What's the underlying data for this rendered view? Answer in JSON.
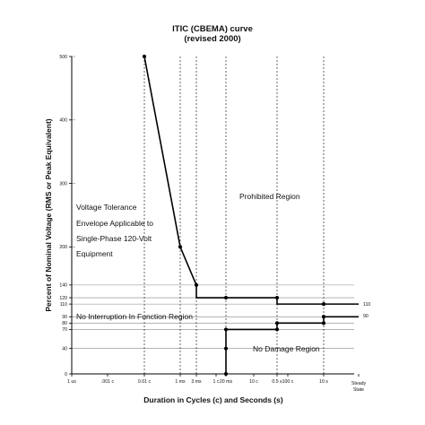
{
  "chart_data": {
    "type": "line",
    "title_lines": [
      "ITIC (CBEMA) curve",
      "(revised 2000)"
    ],
    "xlabel": "Duration in Cycles (c) and Seconds (s)",
    "ylabel": "Percent of Nominal Voltage (RMS or Peak Equivalent)",
    "x_scale": "log",
    "x_ticks": [
      "1 us",
      ".001 c",
      "0.01 c",
      "1 ms",
      "3 ms",
      "1 c",
      "20 ms",
      "10 c",
      "0.5 s",
      "100 c",
      "10 s",
      "Steady State"
    ],
    "y_ticks": [
      0,
      40,
      70,
      80,
      90,
      110,
      120,
      140,
      200,
      300,
      400,
      500
    ],
    "ylim": [
      0,
      500
    ],
    "grid": false,
    "upper_curve": {
      "x": [
        "0.01 c",
        "1 ms",
        "3 ms",
        "3 ms",
        "20 ms",
        "0.5 s",
        "0.5 s",
        "10 s",
        "Steady State"
      ],
      "y": [
        500,
        200,
        140,
        120,
        120,
        120,
        110,
        110,
        110
      ]
    },
    "lower_curve": {
      "x": [
        "20 ms",
        "20 ms",
        "20 ms",
        "0.5 s",
        "0.5 s",
        "10 s",
        "10 s",
        "Steady State"
      ],
      "y": [
        0,
        40,
        70,
        70,
        80,
        80,
        90,
        90
      ]
    },
    "annotations": {
      "end_label_upper": "110",
      "end_label_lower": "90",
      "voltage_tolerance": [
        "Voltage Tolerance",
        "Envelope Applicable to",
        "Single-Phase 120-Volt",
        "Equipment"
      ],
      "prohibited": "Prohibited Region",
      "no_interruption": "No Interruption In Function Region",
      "no_damage": "No Damage Region"
    }
  }
}
